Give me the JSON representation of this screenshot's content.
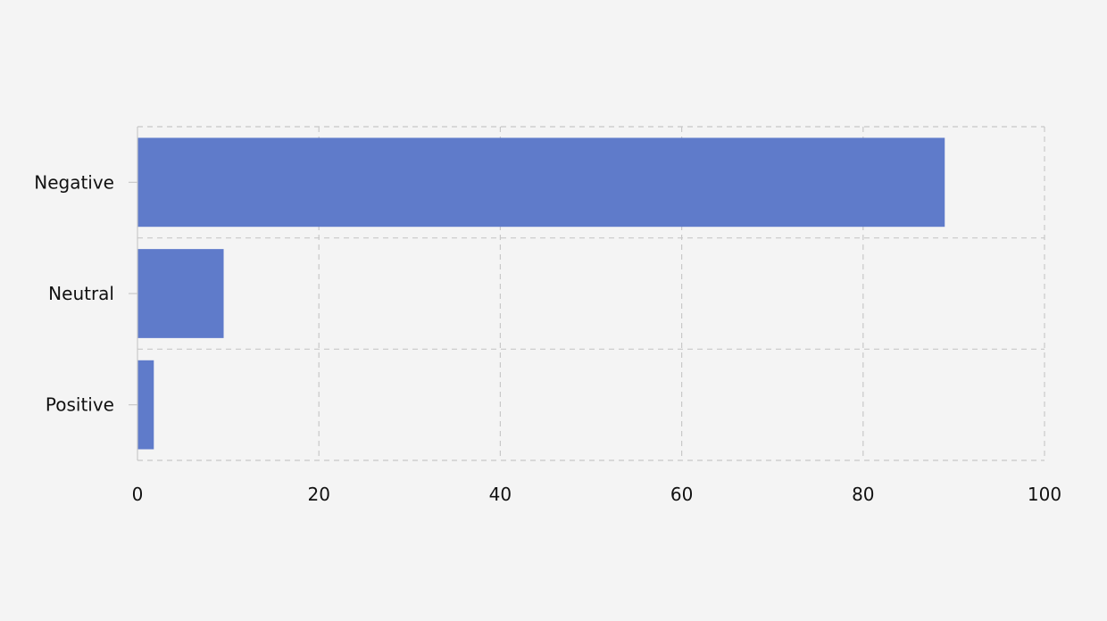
{
  "chart_data": {
    "type": "bar",
    "orientation": "horizontal",
    "categories": [
      "Negative",
      "Neutral",
      "Positive"
    ],
    "values": [
      89,
      9.5,
      1.8
    ],
    "xlim": [
      0,
      100
    ],
    "x_ticks": [
      0,
      20,
      40,
      60,
      80,
      100
    ],
    "title": "",
    "xlabel": "",
    "ylabel": "",
    "grid": true,
    "grid_style": "dashed",
    "bar_color": "#5f7bca",
    "grid_color": "#c8c8c8",
    "background_color": "#f4f4f4"
  }
}
